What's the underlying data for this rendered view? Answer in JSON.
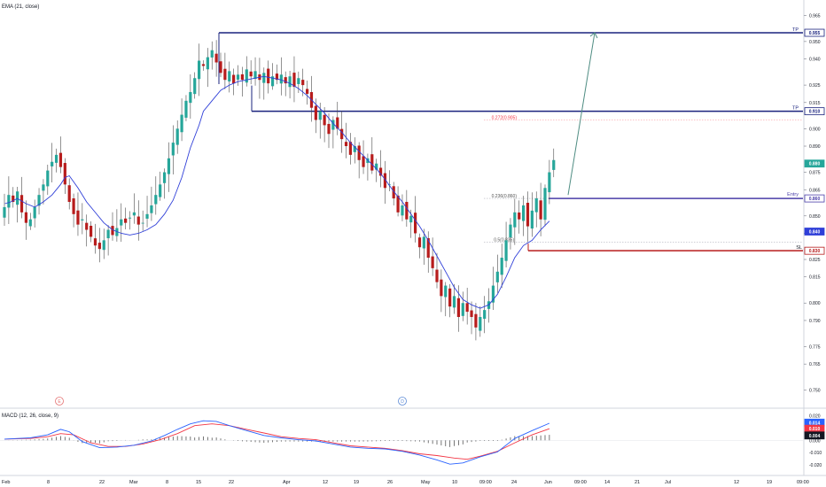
{
  "indicator_label": "EMA (21, close)",
  "macd_label": "MACD (12, 26, close, 9)",
  "colors": {
    "up": "#26a69a",
    "down": "#b71c1c",
    "ema": "#2f3fd8",
    "navy": "#1a237e",
    "sl": "#b71c1c",
    "macd_line": "#2962ff",
    "signal_line": "#f23645",
    "hist": "#555555",
    "arrow": "#4e8c82",
    "fib": "#f23645"
  },
  "chart_data": [
    {
      "type": "candlestick",
      "title": "",
      "price_scale": {
        "ticks": [
          "0.965",
          "0.950",
          "0.940",
          "0.925",
          "0.915",
          "0.900",
          "0.890",
          "0.875",
          "0.865",
          "0.850",
          "0.840",
          "0.825",
          "0.815",
          "0.800",
          "0.790",
          "0.775",
          "0.765",
          "0.750"
        ],
        "ylim": [
          0.748,
          0.972
        ]
      },
      "time_axis": [
        "Feb",
        "8",
        "22",
        "Mar",
        "8",
        "15",
        "22",
        "Apr",
        "12",
        "19",
        "26",
        "May",
        "10",
        "09:00",
        "24",
        "Jun",
        "09:00",
        "14",
        "21",
        "Jul",
        "12",
        "19",
        "09:00"
      ],
      "close_series": [
        0.855,
        0.862,
        0.858,
        0.864,
        0.852,
        0.846,
        0.848,
        0.855,
        0.862,
        0.868,
        0.876,
        0.881,
        0.885,
        0.878,
        0.868,
        0.858,
        0.851,
        0.845,
        0.848,
        0.842,
        0.838,
        0.833,
        0.831,
        0.836,
        0.842,
        0.839,
        0.843,
        0.848,
        0.846,
        0.849,
        0.852,
        0.845,
        0.846,
        0.851,
        0.856,
        0.862,
        0.868,
        0.875,
        0.883,
        0.892,
        0.9,
        0.908,
        0.916,
        0.921,
        0.929,
        0.939,
        0.936,
        0.941,
        0.945,
        0.938,
        0.932,
        0.928,
        0.933,
        0.926,
        0.931,
        0.928,
        0.934,
        0.93,
        0.933,
        0.928,
        0.932,
        0.926,
        0.93,
        0.928,
        0.931,
        0.926,
        0.93,
        0.924,
        0.929,
        0.925,
        0.92,
        0.912,
        0.905,
        0.91,
        0.902,
        0.897,
        0.905,
        0.9,
        0.894,
        0.89,
        0.885,
        0.89,
        0.882,
        0.878,
        0.883,
        0.876,
        0.88,
        0.873,
        0.866,
        0.868,
        0.86,
        0.852,
        0.856,
        0.848,
        0.85,
        0.84,
        0.832,
        0.838,
        0.826,
        0.82,
        0.812,
        0.804,
        0.81,
        0.798,
        0.804,
        0.792,
        0.8,
        0.795,
        0.792,
        0.786,
        0.792,
        0.796,
        0.801,
        0.81,
        0.818,
        0.826,
        0.836,
        0.845,
        0.852,
        0.848,
        0.856,
        0.844,
        0.853,
        0.86,
        0.848,
        0.866,
        0.875,
        0.882
      ],
      "ema_series": [
        [
          0.1,
          0.857
        ],
        [
          1.5,
          0.858
        ],
        [
          3,
          0.86
        ],
        [
          5,
          0.857
        ],
        [
          7,
          0.855
        ],
        [
          9,
          0.858
        ],
        [
          11,
          0.862
        ],
        [
          13,
          0.868
        ],
        [
          14,
          0.872
        ],
        [
          15,
          0.873
        ],
        [
          17,
          0.866
        ],
        [
          19,
          0.858
        ],
        [
          21,
          0.852
        ],
        [
          23,
          0.846
        ],
        [
          25,
          0.842
        ],
        [
          27,
          0.84
        ],
        [
          29,
          0.839
        ],
        [
          31,
          0.84
        ],
        [
          33,
          0.842
        ],
        [
          35,
          0.845
        ],
        [
          37,
          0.851
        ],
        [
          39,
          0.859
        ],
        [
          41,
          0.872
        ],
        [
          43,
          0.889
        ],
        [
          45,
          0.902
        ],
        [
          46,
          0.91
        ],
        [
          48,
          0.916
        ],
        [
          50,
          0.922
        ],
        [
          52,
          0.925
        ],
        [
          54,
          0.927
        ],
        [
          56,
          0.928
        ],
        [
          58,
          0.929
        ],
        [
          60,
          0.93
        ],
        [
          62,
          0.929
        ],
        [
          64,
          0.928
        ],
        [
          66,
          0.926
        ],
        [
          68,
          0.923
        ],
        [
          70,
          0.919
        ],
        [
          72,
          0.914
        ],
        [
          74,
          0.909
        ],
        [
          76,
          0.903
        ],
        [
          78,
          0.898
        ],
        [
          80,
          0.892
        ],
        [
          82,
          0.887
        ],
        [
          84,
          0.882
        ],
        [
          86,
          0.877
        ],
        [
          88,
          0.871
        ],
        [
          90,
          0.864
        ],
        [
          92,
          0.858
        ],
        [
          94,
          0.851
        ],
        [
          96,
          0.844
        ],
        [
          98,
          0.836
        ],
        [
          100,
          0.827
        ],
        [
          102,
          0.818
        ],
        [
          104,
          0.809
        ],
        [
          106,
          0.802
        ],
        [
          108,
          0.799
        ],
        [
          110,
          0.797
        ],
        [
          112,
          0.799
        ],
        [
          114,
          0.805
        ],
        [
          116,
          0.815
        ],
        [
          118,
          0.826
        ],
        [
          120,
          0.833
        ],
        [
          122,
          0.836
        ],
        [
          124,
          0.842
        ],
        [
          126,
          0.847
        ]
      ],
      "levels": [
        {
          "name": "TP",
          "value": 0.955,
          "label": "0.955",
          "text": "TP"
        },
        {
          "name": "TP",
          "value": 0.91,
          "label": "0.910",
          "text": "TP"
        },
        {
          "name": "Entry",
          "value": 0.86,
          "label": "0.860",
          "text": "Entry"
        },
        {
          "name": "SL",
          "value": 0.83,
          "label": "0.830",
          "text": "SL"
        }
      ],
      "fib_labels": [
        {
          "text": "0.272(0.905)",
          "value": 0.905
        },
        {
          "text": "0.236(0.860)",
          "value": 0.86
        },
        {
          "text": "0.5(0.835)",
          "value": 0.835
        }
      ],
      "extra_price_labels": [
        {
          "text": "0.840",
          "value": 0.841
        },
        {
          "text": "0.880",
          "value": 0.88
        }
      ],
      "event_markers": [
        "E",
        "D"
      ]
    },
    {
      "type": "macd",
      "title": "",
      "ticks": [
        "0.020",
        "0.010",
        "0.000",
        "-0.010",
        "-0.020"
      ],
      "ylim": [
        -0.024,
        0.027
      ],
      "value_labels": [
        {
          "text": "0.014",
          "value": 0.0145
        },
        {
          "text": "0.010",
          "value": 0.0095
        },
        {
          "text": "0.004",
          "value": 0.004
        }
      ],
      "macd_series": [
        [
          0,
          0.001
        ],
        [
          6,
          0.002
        ],
        [
          10,
          0.0045
        ],
        [
          13,
          0.009
        ],
        [
          15,
          0.007
        ],
        [
          18,
          -0.001
        ],
        [
          22,
          -0.006
        ],
        [
          26,
          -0.0055
        ],
        [
          30,
          -0.004
        ],
        [
          34,
          -0.0005
        ],
        [
          37,
          0.004
        ],
        [
          40,
          0.009
        ],
        [
          43,
          0.0135
        ],
        [
          46,
          0.016
        ],
        [
          49,
          0.0155
        ],
        [
          52,
          0.012
        ],
        [
          56,
          0.008
        ],
        [
          60,
          0.004
        ],
        [
          64,
          0.002
        ],
        [
          68,
          0.0005
        ],
        [
          72,
          -0.0005
        ],
        [
          76,
          -0.003
        ],
        [
          80,
          -0.0055
        ],
        [
          84,
          -0.0065
        ],
        [
          88,
          -0.007
        ],
        [
          92,
          -0.009
        ],
        [
          96,
          -0.012
        ],
        [
          100,
          -0.016
        ],
        [
          103,
          -0.0195
        ],
        [
          106,
          -0.0185
        ],
        [
          110,
          -0.0135
        ],
        [
          114,
          -0.0095
        ],
        [
          118,
          0.0015
        ],
        [
          122,
          0.008
        ],
        [
          126,
          0.014
        ]
      ],
      "signal_series": [
        [
          0,
          0.001
        ],
        [
          6,
          0.0015
        ],
        [
          10,
          0.003
        ],
        [
          13,
          0.0055
        ],
        [
          16,
          0.0045
        ],
        [
          20,
          -0.002
        ],
        [
          24,
          -0.005
        ],
        [
          28,
          -0.005
        ],
        [
          32,
          -0.003
        ],
        [
          36,
          0.0005
        ],
        [
          40,
          0.0055
        ],
        [
          44,
          0.012
        ],
        [
          48,
          0.0135
        ],
        [
          52,
          0.012
        ],
        [
          56,
          0.009
        ],
        [
          60,
          0.006
        ],
        [
          64,
          0.003
        ],
        [
          68,
          0.0015
        ],
        [
          72,
          0.0005
        ],
        [
          76,
          -0.002
        ],
        [
          80,
          -0.0045
        ],
        [
          84,
          -0.0055
        ],
        [
          88,
          -0.0065
        ],
        [
          92,
          -0.0085
        ],
        [
          96,
          -0.011
        ],
        [
          100,
          -0.0125
        ],
        [
          104,
          -0.0145
        ],
        [
          107,
          -0.0155
        ],
        [
          110,
          -0.013
        ],
        [
          114,
          -0.009
        ],
        [
          118,
          -0.002
        ],
        [
          122,
          0.0045
        ],
        [
          126,
          0.0095
        ]
      ]
    }
  ]
}
